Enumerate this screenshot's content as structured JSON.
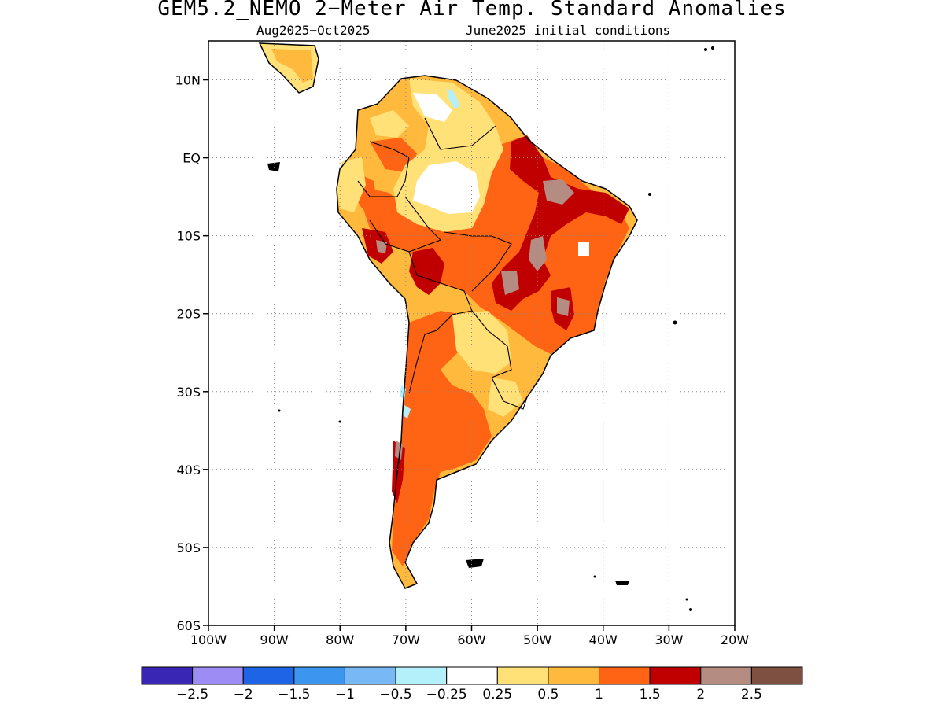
{
  "title": "GEM5.2_NEMO 2−Meter Air Temp. Standard Anomalies",
  "subtitle_period": "Aug2025−Oct2025",
  "subtitle_init": "June2025 initial conditions",
  "axes": {
    "lat_labels": [
      "10N",
      "EQ",
      "10S",
      "20S",
      "30S",
      "40S",
      "50S",
      "60S"
    ],
    "lon_labels": [
      "100W",
      "90W",
      "80W",
      "70W",
      "60W",
      "50W",
      "40W",
      "30W",
      "20W"
    ],
    "lat_range": [
      -60,
      15
    ],
    "lon_range": [
      -100,
      -20
    ],
    "grid": "dotted"
  },
  "colorbar": {
    "colors": [
      "#3a26b4",
      "#9e8cf5",
      "#1e64e6",
      "#3c96f0",
      "#78b9f5",
      "#b4f0fa",
      "#ffffff",
      "#ffe178",
      "#ffb93c",
      "#ff6414",
      "#c00000",
      "#b48c82",
      "#7d5041"
    ],
    "labels": [
      "−2.5",
      "−2",
      "−1.5",
      "−1",
      "−0.5",
      "−0.25",
      "0.25",
      "0.5",
      "1",
      "1.5",
      "2",
      "2.5"
    ]
  },
  "map_colors": {
    "light": "#ffe178",
    "orange": "#ffb93c",
    "dark_orange": "#ff6414",
    "red": "#c00000",
    "brown": "#b48c82",
    "pale_blue": "#b4f0fa",
    "white": "#ffffff"
  }
}
